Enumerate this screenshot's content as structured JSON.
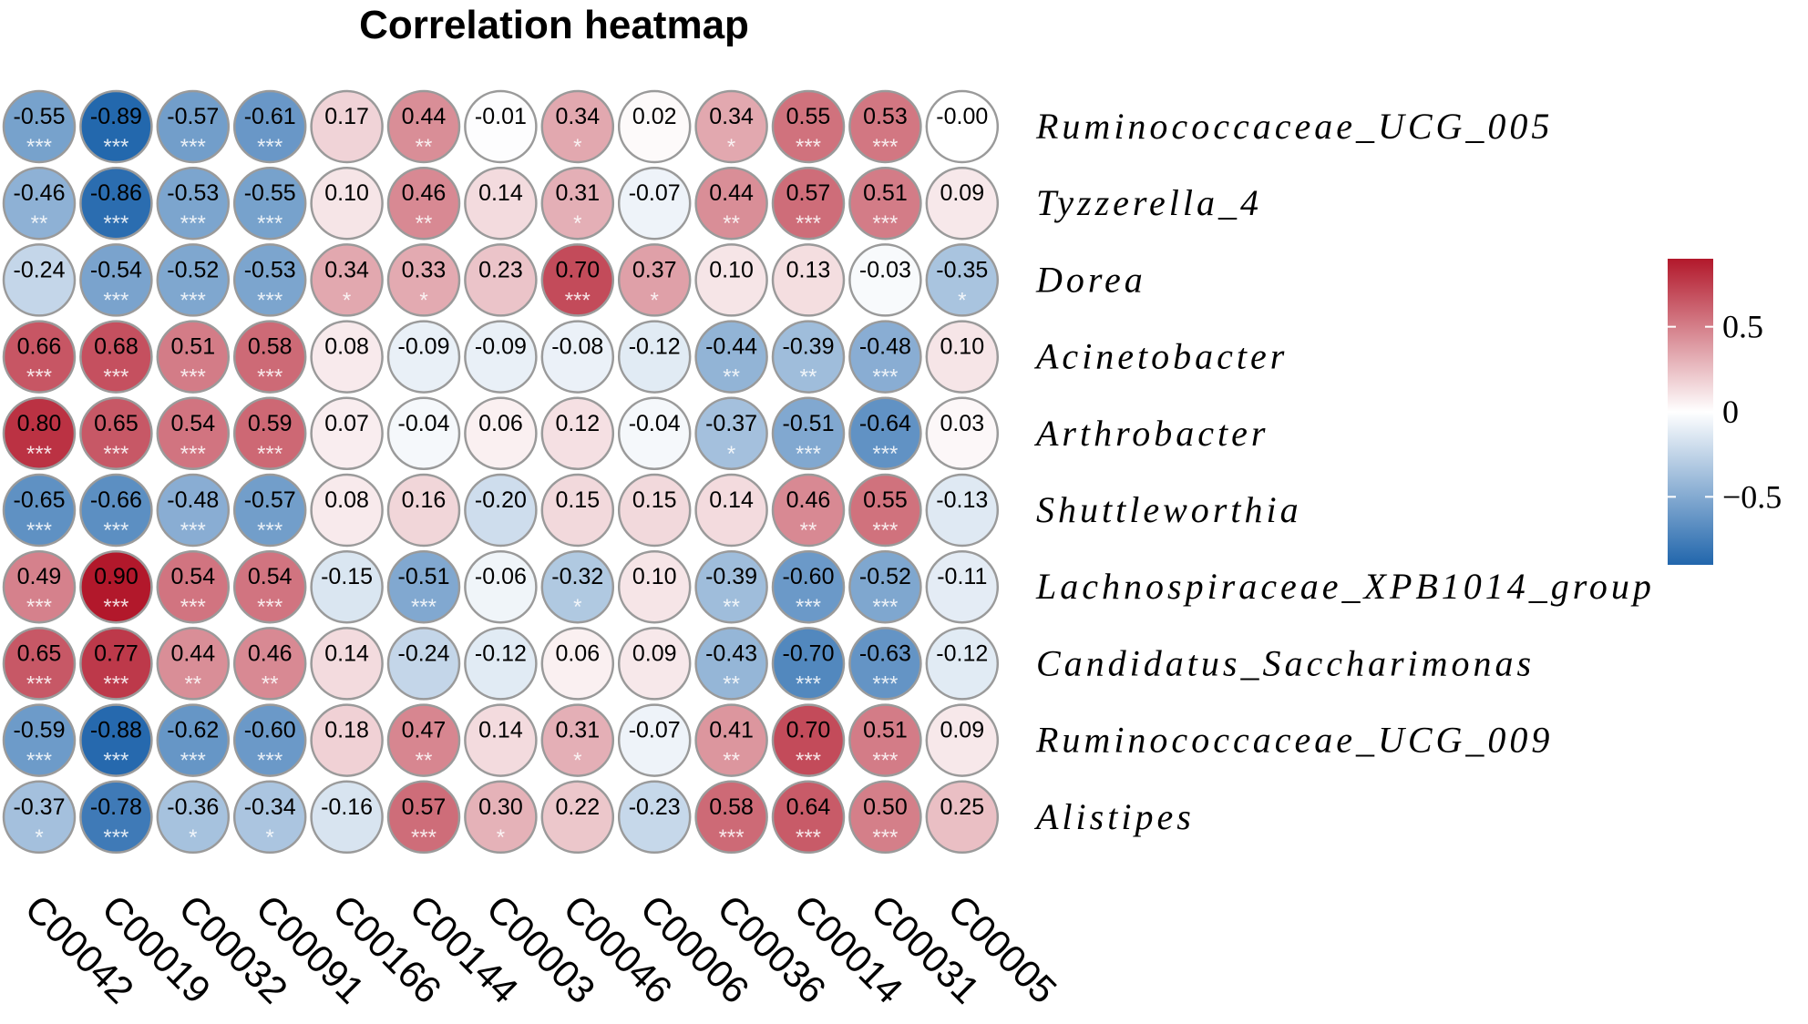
{
  "chart_data": {
    "type": "heatmap",
    "title": "Correlation heatmap",
    "rows": [
      "Ruminococcaceae_UCG_005",
      "Tyzzerella_4",
      "Dorea",
      "Acinetobacter",
      "Arthrobacter",
      "Shuttleworthia",
      "Lachnospiraceae_XPB1014_group",
      "Candidatus_Saccharimonas",
      "Ruminococcaceae_UCG_009",
      "Alistipes"
    ],
    "columns": [
      "C00042",
      "C00019",
      "C00032",
      "C00091",
      "C00166",
      "C00144",
      "C00003",
      "C00046",
      "C00006",
      "C00036",
      "C00014",
      "C00031",
      "C00005"
    ],
    "value_labels": [
      [
        "-0.55",
        "-0.89",
        "-0.57",
        "-0.61",
        "0.17",
        "0.44",
        "-0.01",
        "0.34",
        "0.02",
        "0.34",
        "0.55",
        "0.53",
        "-0.00"
      ],
      [
        "-0.46",
        "-0.86",
        "-0.53",
        "-0.55",
        "0.10",
        "0.46",
        "0.14",
        "0.31",
        "-0.07",
        "0.44",
        "0.57",
        "0.51",
        "0.09"
      ],
      [
        "-0.24",
        "-0.54",
        "-0.52",
        "-0.53",
        "0.34",
        "0.33",
        "0.23",
        "0.70",
        "0.37",
        "0.10",
        "0.13",
        "-0.03",
        "-0.35"
      ],
      [
        "0.66",
        "0.68",
        "0.51",
        "0.58",
        "0.08",
        "-0.09",
        "-0.09",
        "-0.08",
        "-0.12",
        "-0.44",
        "-0.39",
        "-0.48",
        "0.10"
      ],
      [
        "0.80",
        "0.65",
        "0.54",
        "0.59",
        "0.07",
        "-0.04",
        "0.06",
        "0.12",
        "-0.04",
        "-0.37",
        "-0.51",
        "-0.64",
        "0.03"
      ],
      [
        "-0.65",
        "-0.66",
        "-0.48",
        "-0.57",
        "0.08",
        "0.16",
        "-0.20",
        "0.15",
        "0.15",
        "0.14",
        "0.46",
        "0.55",
        "-0.13"
      ],
      [
        "0.49",
        "0.90",
        "0.54",
        "0.54",
        "-0.15",
        "-0.51",
        "-0.06",
        "-0.32",
        "0.10",
        "-0.39",
        "-0.60",
        "-0.52",
        "-0.11"
      ],
      [
        "0.65",
        "0.77",
        "0.44",
        "0.46",
        "0.14",
        "-0.24",
        "-0.12",
        "0.06",
        "0.09",
        "-0.43",
        "-0.70",
        "-0.63",
        "-0.12"
      ],
      [
        "-0.59",
        "-0.88",
        "-0.62",
        "-0.60",
        "0.18",
        "0.47",
        "0.14",
        "0.31",
        "-0.07",
        "0.41",
        "0.70",
        "0.51",
        "0.09"
      ],
      [
        "-0.37",
        "-0.78",
        "-0.36",
        "-0.34",
        "-0.16",
        "0.57",
        "0.30",
        "0.22",
        "-0.23",
        "0.58",
        "0.64",
        "0.50",
        "0.25"
      ]
    ],
    "significance": [
      [
        "***",
        "***",
        "***",
        "***",
        "",
        "**",
        "",
        "*",
        "",
        "*",
        "***",
        "***",
        ""
      ],
      [
        "**",
        "***",
        "***",
        "***",
        "",
        "**",
        "",
        "*",
        "",
        "**",
        "***",
        "***",
        ""
      ],
      [
        "",
        "***",
        "***",
        "***",
        "*",
        "*",
        "",
        "***",
        "*",
        "",
        "",
        "",
        "*"
      ],
      [
        "***",
        "***",
        "***",
        "***",
        "",
        "",
        "",
        "",
        "",
        "**",
        "**",
        "***",
        ""
      ],
      [
        "***",
        "***",
        "***",
        "***",
        "",
        "",
        "",
        "",
        "",
        "*",
        "***",
        "***",
        ""
      ],
      [
        "***",
        "***",
        "***",
        "***",
        "",
        "",
        "",
        "",
        "",
        "",
        "**",
        "***",
        ""
      ],
      [
        "***",
        "***",
        "***",
        "***",
        "",
        "***",
        "",
        "*",
        "",
        "**",
        "***",
        "***",
        ""
      ],
      [
        "***",
        "***",
        "**",
        "**",
        "",
        "",
        "",
        "",
        "",
        "**",
        "***",
        "***",
        ""
      ],
      [
        "***",
        "***",
        "***",
        "***",
        "",
        "**",
        "",
        "*",
        "",
        "**",
        "***",
        "***",
        ""
      ],
      [
        "*",
        "***",
        "*",
        "*",
        "",
        "***",
        "*",
        "",
        "",
        "***",
        "***",
        "***",
        ""
      ]
    ],
    "color_scale": {
      "min": -0.9,
      "max": 0.9,
      "low_color": "#2166ac",
      "mid_color": "#ffffff",
      "high_color": "#b2182b",
      "ticks": [
        0.5,
        0,
        -0.5
      ],
      "tick_labels": [
        "0.5",
        "0",
        "−0.5"
      ]
    },
    "legend_position": "right"
  }
}
